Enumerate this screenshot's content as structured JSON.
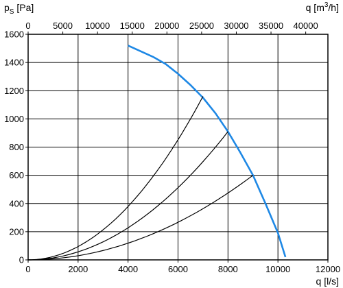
{
  "chart_data": {
    "type": "line",
    "title": "",
    "ylabel": {
      "main": "p",
      "sub": "S",
      "unit": " [Pa]"
    },
    "xlabel_bottom": "q [l/s]",
    "xlabel_top": {
      "main": "q [m",
      "sup": "3",
      "unit": "/h]"
    },
    "xlim": [
      0,
      12000
    ],
    "ylim": [
      0,
      1600
    ],
    "x_ticks_bottom": [
      0,
      2000,
      4000,
      6000,
      8000,
      10000,
      12000
    ],
    "x_ticks_top": [
      0,
      5000,
      10000,
      15000,
      20000,
      25000,
      30000,
      35000,
      40000
    ],
    "x_top_conversion_factor": 3.6,
    "y_ticks": [
      0,
      200,
      400,
      600,
      800,
      1000,
      1200,
      1400,
      1600
    ],
    "grid": true,
    "colors": {
      "fan_curve": "#1e88e5",
      "system_curves": "#000000",
      "grid": "#000000"
    },
    "series": [
      {
        "role": "fan-curve",
        "points": [
          [
            4000,
            1520
          ],
          [
            4500,
            1480
          ],
          [
            5000,
            1440
          ],
          [
            5500,
            1390
          ],
          [
            6000,
            1320
          ],
          [
            6500,
            1240
          ],
          [
            7000,
            1150
          ],
          [
            7500,
            1040
          ],
          [
            8000,
            910
          ],
          [
            8500,
            760
          ],
          [
            9000,
            600
          ],
          [
            9500,
            400
          ],
          [
            10000,
            190
          ],
          [
            10300,
            20
          ]
        ]
      },
      {
        "role": "system-curve",
        "k": 2.367e-05,
        "x_end": 7000
      },
      {
        "role": "system-curve",
        "k": 1.422e-05,
        "x_end": 8000
      },
      {
        "role": "system-curve",
        "k": 7.41e-06,
        "x_end": 9000
      }
    ]
  }
}
